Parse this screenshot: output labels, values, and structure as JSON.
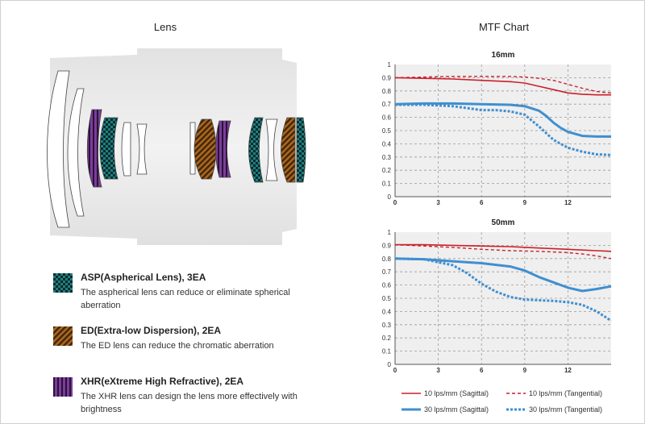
{
  "titles": {
    "lens": "Lens",
    "mtf": "MTF Chart"
  },
  "colors": {
    "asp": "#1f7f80",
    "ed": "#a8651e",
    "xhr": "#7b3d9b",
    "sagittal10": "#cc1f2a",
    "series30": "#3f8fd0"
  },
  "legend": [
    {
      "name": "ASP(Aspherical Lens), 3EA",
      "desc": "The aspherical lens can reduce or eliminate spherical aberration",
      "pattern": "checker-pattern"
    },
    {
      "name": "ED(Extra-low Dispersion), 2EA",
      "desc": "The ED lens can reduce the chromatic aberration",
      "pattern": "diagonal-stripe-pattern"
    },
    {
      "name": "XHR(eXtreme High Refractive), 2EA",
      "desc": "The XHR lens can design the lens more effectively with brightness",
      "pattern": "vertical-stripe-pattern"
    }
  ],
  "mtf_legend": [
    "10 lps/mm (Sagittal)",
    "10 lps/mm (Tangential)",
    "30 lps/mm (Sagittal)",
    "30 lps/mm (Tangential)"
  ],
  "chart_data": [
    {
      "type": "line",
      "title": "16mm",
      "xlim": [
        0,
        15
      ],
      "ylim": [
        0,
        1
      ],
      "xticks": [
        "0",
        "3",
        "6",
        "9",
        "12"
      ],
      "yticks": [
        "1",
        "0.9",
        "0.8",
        "0.7",
        "0.6",
        "0.5",
        "0.4",
        "0.3",
        "0.2",
        "0.1",
        "0"
      ],
      "grid": true,
      "series": [
        {
          "name": "10 lps/mm (Sagittal)",
          "x": [
            0,
            2,
            4,
            6,
            8,
            9,
            10,
            11,
            12,
            13,
            14,
            15
          ],
          "y": [
            0.9,
            0.895,
            0.89,
            0.88,
            0.87,
            0.86,
            0.835,
            0.81,
            0.785,
            0.775,
            0.77,
            0.77
          ]
        },
        {
          "name": "10 lps/mm (Tangential)",
          "x": [
            0,
            2,
            4,
            6,
            8,
            9,
            10,
            11,
            12,
            13,
            14,
            15
          ],
          "y": [
            0.9,
            0.905,
            0.91,
            0.91,
            0.91,
            0.905,
            0.895,
            0.88,
            0.85,
            0.82,
            0.795,
            0.785
          ]
        },
        {
          "name": "30 lps/mm (Sagittal)",
          "x": [
            0,
            2,
            4,
            6,
            8,
            9,
            10,
            10.5,
            11,
            11.5,
            12,
            13,
            14,
            15
          ],
          "y": [
            0.7,
            0.705,
            0.705,
            0.7,
            0.695,
            0.685,
            0.65,
            0.61,
            0.56,
            0.52,
            0.49,
            0.46,
            0.455,
            0.455
          ]
        },
        {
          "name": "30 lps/mm (Tangential)",
          "x": [
            0,
            2,
            4,
            5,
            6,
            7,
            8,
            9,
            10,
            11,
            12,
            13,
            14,
            15
          ],
          "y": [
            0.695,
            0.695,
            0.685,
            0.67,
            0.655,
            0.655,
            0.645,
            0.62,
            0.53,
            0.43,
            0.37,
            0.34,
            0.32,
            0.315
          ]
        }
      ]
    },
    {
      "type": "line",
      "title": "50mm",
      "xlim": [
        0,
        15
      ],
      "ylim": [
        0,
        1
      ],
      "xticks": [
        "0",
        "3",
        "6",
        "9",
        "12"
      ],
      "yticks": [
        "1",
        "0.9",
        "0.8",
        "0.7",
        "0.6",
        "0.5",
        "0.4",
        "0.3",
        "0.2",
        "0.1",
        "0"
      ],
      "grid": true,
      "series": [
        {
          "name": "10 lps/mm (Sagittal)",
          "x": [
            0,
            2,
            4,
            6,
            8,
            10,
            12,
            14,
            15
          ],
          "y": [
            0.905,
            0.905,
            0.9,
            0.895,
            0.89,
            0.88,
            0.87,
            0.86,
            0.855
          ]
        },
        {
          "name": "10 lps/mm (Tangential)",
          "x": [
            0,
            2,
            4,
            6,
            8,
            10,
            12,
            13,
            14,
            15
          ],
          "y": [
            0.905,
            0.895,
            0.885,
            0.87,
            0.86,
            0.855,
            0.845,
            0.835,
            0.82,
            0.8
          ]
        },
        {
          "name": "30 lps/mm (Sagittal)",
          "x": [
            0,
            2,
            4,
            6,
            8,
            9,
            10,
            11,
            12,
            13,
            14,
            15
          ],
          "y": [
            0.8,
            0.795,
            0.78,
            0.765,
            0.74,
            0.71,
            0.66,
            0.62,
            0.58,
            0.555,
            0.57,
            0.59
          ]
        },
        {
          "name": "30 lps/mm (Tangential)",
          "x": [
            0,
            2,
            4,
            5,
            6,
            7,
            8,
            9,
            10,
            11,
            12,
            13,
            14,
            15
          ],
          "y": [
            0.8,
            0.795,
            0.75,
            0.69,
            0.61,
            0.55,
            0.51,
            0.49,
            0.485,
            0.48,
            0.47,
            0.45,
            0.4,
            0.33
          ]
        }
      ]
    }
  ]
}
